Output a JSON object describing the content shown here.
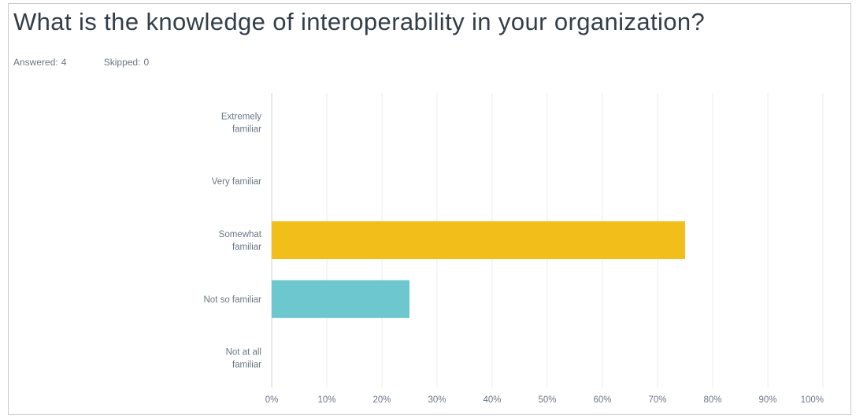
{
  "question": {
    "title": "What is the knowledge of interoperability in your organization?",
    "answered_label": "Answered:",
    "answered_value": "4",
    "skipped_label": "Skipped:",
    "skipped_value": "0"
  },
  "chart_data": {
    "type": "bar",
    "orientation": "horizontal",
    "title": "What is the knowledge of interoperability in your organization?",
    "categories": [
      [
        "Extremely",
        "familiar"
      ],
      [
        "Very familiar"
      ],
      [
        "Somewhat",
        "familiar"
      ],
      [
        "Not so familiar"
      ],
      [
        "Not at all",
        "familiar"
      ]
    ],
    "values": [
      0,
      0,
      75,
      25,
      0
    ],
    "bar_colors": [
      "#f2be1a",
      "#f2be1a",
      "#f2be1a",
      "#6cc8ce",
      "#f2be1a"
    ],
    "xlim": [
      0,
      100
    ],
    "xticks": [
      "0%",
      "10%",
      "20%",
      "30%",
      "40%",
      "50%",
      "60%",
      "70%",
      "80%",
      "90%",
      "100%"
    ],
    "grid": true,
    "xlabel": "",
    "ylabel": ""
  }
}
